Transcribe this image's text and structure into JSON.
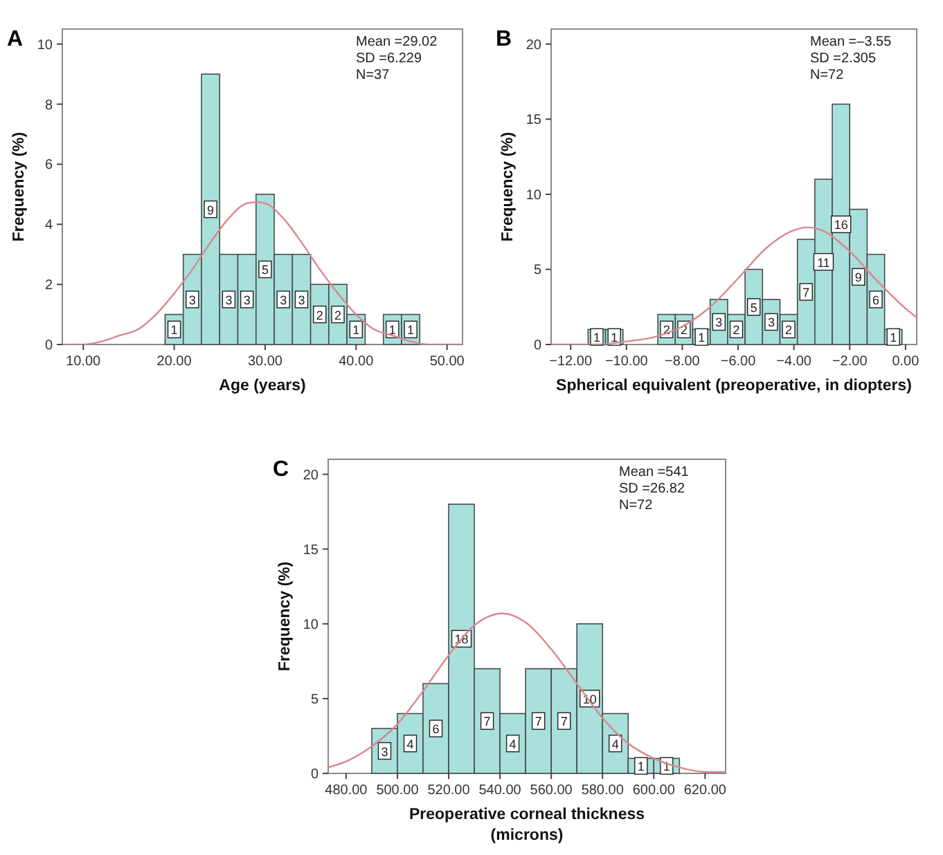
{
  "chart_data": [
    {
      "type": "histogram",
      "title": "A",
      "xlabel": "Age (years)",
      "ylabel": "Frequency (%)",
      "bins": [
        19,
        21,
        23,
        25,
        27,
        29,
        31,
        33,
        35,
        37,
        39,
        41,
        43,
        45,
        47
      ],
      "values": [
        1,
        3,
        9,
        3,
        3,
        5,
        3,
        3,
        2,
        2,
        1,
        0,
        1,
        1
      ],
      "value_labels": [
        "1",
        "3",
        "9",
        "3",
        "3",
        "5",
        "3",
        "3",
        "2",
        "2",
        "1",
        null,
        "1",
        "1"
      ],
      "color": "#a8e0dc",
      "series": [
        {
          "type": "line",
          "color": "#d9868c",
          "x": [
            8,
            10,
            12,
            14,
            16,
            18,
            20,
            22,
            24,
            26,
            28,
            29.02,
            30,
            32,
            34,
            36,
            38,
            40,
            42,
            44,
            46,
            48,
            50,
            51.7
          ],
          "values": [
            0.0,
            0.0,
            0.1,
            0.3,
            0.5,
            1.0,
            1.7,
            2.5,
            3.4,
            4.2,
            4.7,
            4.74,
            4.7,
            4.2,
            3.4,
            2.5,
            1.7,
            1.0,
            0.5,
            0.3,
            0.1,
            0.0,
            0.0,
            0.0
          ]
        }
      ],
      "annotations": [
        "Mean =29.02",
        "SD =6.229",
        "N=37"
      ],
      "xlim": [
        7.7,
        51.7
      ],
      "ylim": [
        0,
        10.5
      ],
      "xticks": [
        {
          "value": 10,
          "label": "10.00"
        },
        {
          "value": 20,
          "label": "20.00"
        },
        {
          "value": 30,
          "label": "30.00"
        },
        {
          "value": 40,
          "label": "40.00"
        },
        {
          "value": 50,
          "label": "50.00"
        }
      ],
      "yticks": [
        0,
        2,
        4,
        6,
        8,
        10
      ]
    },
    {
      "type": "histogram",
      "title": "B",
      "xlabel": "Spherical equivalent (preoperative, in diopters)",
      "ylabel": "Frequency (%)",
      "bins": [
        -11.375,
        -10.75,
        -10.125,
        -9.5,
        -8.875,
        -8.25,
        -7.625,
        -7,
        -6.375,
        -5.75,
        -5.125,
        -4.5,
        -3.875,
        -3.25,
        -2.625,
        -2,
        -1.375,
        -0.75,
        -0.125
      ],
      "values": [
        1,
        1,
        0,
        0,
        2,
        2,
        1,
        3,
        2,
        5,
        3,
        2,
        7,
        11,
        16,
        9,
        6,
        1
      ],
      "value_labels": [
        "1",
        "1",
        null,
        null,
        "2",
        "2",
        "1",
        "3",
        "2",
        "5",
        "3",
        "2",
        "7",
        "11",
        "16",
        "9",
        "6",
        "1"
      ],
      "color": "#a8e0dc",
      "series": [
        {
          "type": "line",
          "color": "#d9868c",
          "x": [
            -12.7,
            -12,
            -11,
            -10,
            -9,
            -8,
            -7,
            -6,
            -5,
            -4,
            -3.55,
            -3,
            -2,
            -1,
            0,
            0.4
          ],
          "values": [
            0.0,
            0.0,
            0.0,
            0.2,
            0.5,
            1.2,
            2.5,
            4.4,
            6.4,
            7.6,
            7.8,
            7.6,
            6.2,
            4.2,
            2.4,
            1.8
          ]
        }
      ],
      "annotations": [
        "Mean =–3.55",
        "SD =2.305",
        "N=72"
      ],
      "xlim": [
        -12.7,
        0.4
      ],
      "ylim": [
        0,
        21
      ],
      "xticks": [
        {
          "value": -12,
          "label": "−12.00"
        },
        {
          "value": -10,
          "label": "−10.00"
        },
        {
          "value": -8,
          "label": "−8.00"
        },
        {
          "value": -6,
          "label": "−6.00"
        },
        {
          "value": -4,
          "label": "−4.00"
        },
        {
          "value": -2,
          "label": "−2.00"
        },
        {
          "value": 0,
          "label": "0.00"
        }
      ],
      "yticks": [
        0,
        5,
        10,
        15,
        20
      ]
    },
    {
      "type": "histogram",
      "title": "C",
      "xlabel": "Preoperative corneal thickness (microns)",
      "ylabel": "Frequency (%)",
      "bins": [
        490,
        500,
        510,
        520,
        530,
        540,
        550,
        560,
        570,
        580,
        590,
        600,
        610
      ],
      "values": [
        3,
        4,
        6,
        18,
        7,
        4,
        7,
        7,
        10,
        4,
        1,
        1
      ],
      "value_labels": [
        "3",
        "4",
        "6",
        "18",
        "7",
        "4",
        "7",
        "7",
        "10",
        "4",
        "1",
        "1"
      ],
      "color": "#a8e0dc",
      "series": [
        {
          "type": "line",
          "color": "#d9868c",
          "x": [
            473,
            480,
            490,
            500,
            510,
            520,
            530,
            541,
            550,
            560,
            570,
            580,
            590,
            600,
            610,
            620,
            628
          ],
          "values": [
            0.4,
            0.8,
            1.8,
            3.3,
            5.5,
            7.9,
            9.9,
            10.7,
            10.1,
            8.3,
            6.0,
            3.7,
            2.0,
            1.0,
            0.4,
            0.1,
            0.1
          ]
        }
      ],
      "annotations": [
        "Mean =541",
        "SD =26.82",
        "N=72"
      ],
      "xlim": [
        473,
        628
      ],
      "ylim": [
        0,
        21
      ],
      "xticks": [
        {
          "value": 480,
          "label": "480.00"
        },
        {
          "value": 500,
          "label": "500.00"
        },
        {
          "value": 520,
          "label": "520.00"
        },
        {
          "value": 540,
          "label": "540.00"
        },
        {
          "value": 560,
          "label": "560.00"
        },
        {
          "value": 580,
          "label": "580.00"
        },
        {
          "value": 600,
          "label": "600.00"
        },
        {
          "value": 620,
          "label": "620.00"
        }
      ],
      "yticks": [
        0,
        5,
        10,
        15,
        20
      ]
    }
  ]
}
